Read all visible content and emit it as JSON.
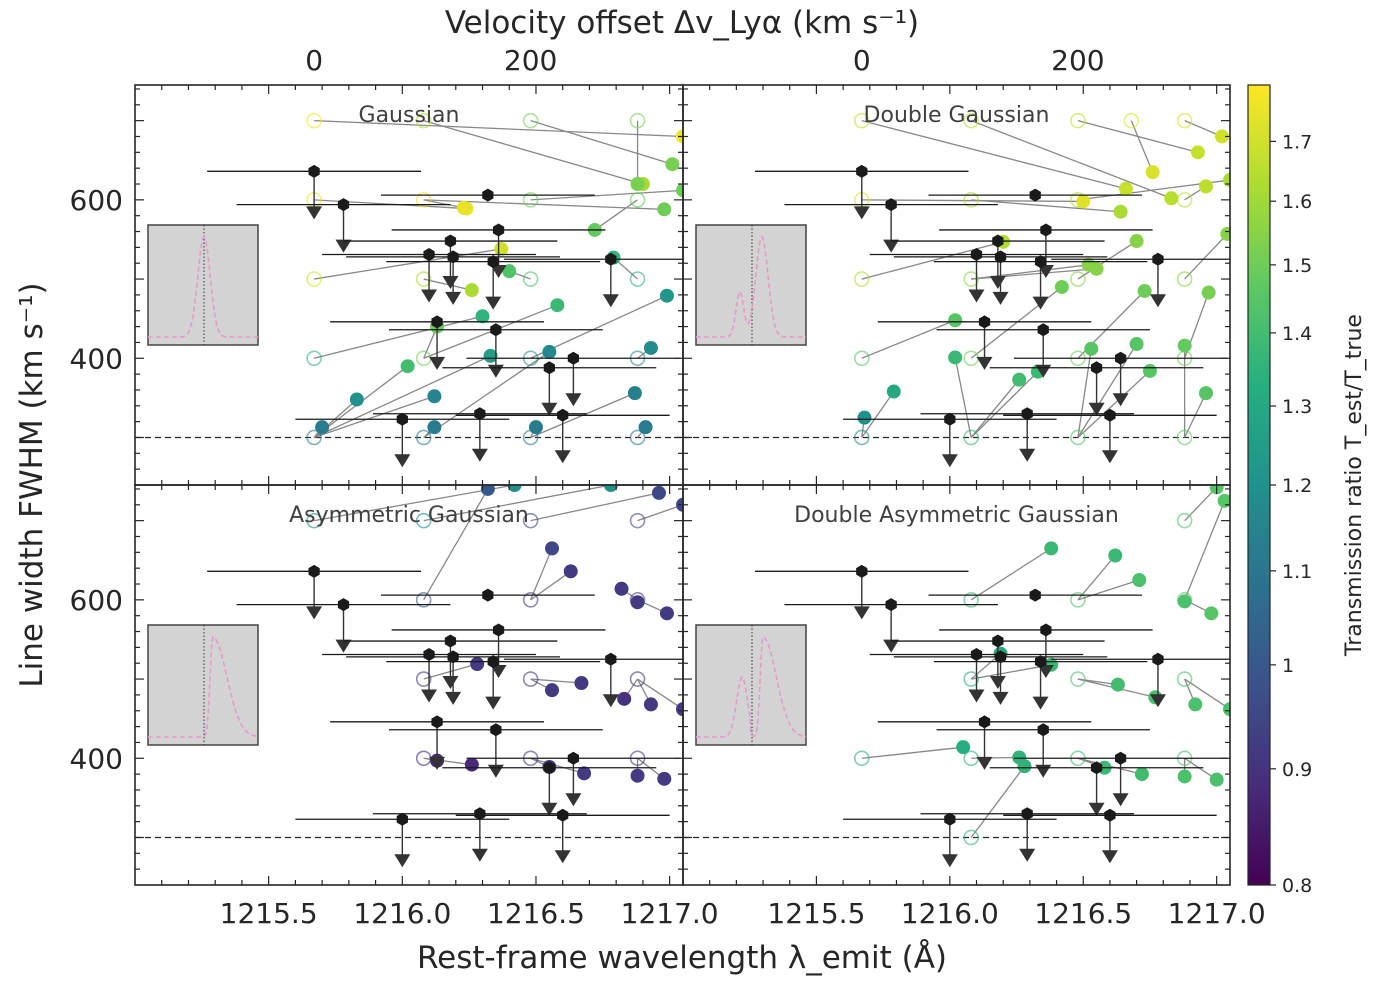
{
  "chart_data": {
    "type": "scatter",
    "figure": {
      "xlabel_bottom": "Rest-frame wavelength λ_emit (Å)",
      "xlabel_top": "Velocity offset Δv_Lyα (km s⁻¹)",
      "ylabel": "Line width FWHM (km s⁻¹)",
      "colorbar_label": "Transmission ratio T_est/T_true",
      "xlim": [
        1215.0,
        1217.05
      ],
      "ylim": [
        240,
        745
      ],
      "x_ticks": [
        "1215.5",
        "1216.0",
        "1216.5",
        "1217.0"
      ],
      "x_tick_values": [
        1215.5,
        1216.0,
        1216.5,
        1217.0
      ],
      "top_ticks": [
        "0",
        "200"
      ],
      "top_tick_values": [
        1215.67,
        1216.48
      ],
      "y_ticks": [
        "400",
        "600"
      ],
      "y_tick_values": [
        400,
        600
      ],
      "reference_fwhm": 300,
      "colorbar": {
        "scale": "log",
        "range": [
          0.8,
          1.8
        ],
        "ticks": [
          "0.8",
          "0.9",
          "1",
          "1.1",
          "1.2",
          "1.3",
          "1.4",
          "1.5",
          "1.6",
          "1.7"
        ],
        "tick_values": [
          0.8,
          0.9,
          1.0,
          1.1,
          1.2,
          1.3,
          1.4,
          1.5,
          1.6,
          1.7
        ],
        "colormap": [
          "#440154",
          "#472d7b",
          "#3b528b",
          "#2c728e",
          "#21918c",
          "#28ae80",
          "#5ec962",
          "#addc30",
          "#fde725"
        ]
      },
      "colors": {
        "measurement": "#1a1a1a",
        "arrow": "#333333",
        "connector": "#888888",
        "reference_line": "#262626",
        "inset_bg": "#d3d3d3",
        "inset_curve": "#e79ac4"
      }
    },
    "measurements": [
      {
        "x": 1215.67,
        "y": 636,
        "xerr": [
          0.4,
          0.4
        ],
        "upper": true
      },
      {
        "x": 1215.78,
        "y": 594,
        "xerr": [
          0.4,
          0.4
        ],
        "upper": true
      },
      {
        "x": 1216.32,
        "y": 606,
        "xerr": [
          0.4,
          0.4
        ],
        "upper": false
      },
      {
        "x": 1216.18,
        "y": 548,
        "xerr": [
          0.4,
          0.4
        ],
        "upper": true
      },
      {
        "x": 1216.36,
        "y": 562,
        "xerr": [
          0.4,
          0.4
        ],
        "upper": true
      },
      {
        "x": 1216.1,
        "y": 531,
        "xerr": [
          0.4,
          0.4
        ],
        "upper": true
      },
      {
        "x": 1216.19,
        "y": 528,
        "xerr": [
          0.4,
          0.4
        ],
        "upper": true
      },
      {
        "x": 1216.34,
        "y": 522,
        "xerr": [
          0.4,
          0.4
        ],
        "upper": true
      },
      {
        "x": 1216.78,
        "y": 525,
        "xerr": [
          0.4,
          0.4
        ],
        "upper": true
      },
      {
        "x": 1216.13,
        "y": 446,
        "xerr": [
          0.4,
          0.4
        ],
        "upper": true
      },
      {
        "x": 1216.35,
        "y": 436,
        "xerr": [
          0.4,
          0.4
        ],
        "upper": true
      },
      {
        "x": 1216.55,
        "y": 388,
        "xerr": [
          0.4,
          0.4
        ],
        "upper": true
      },
      {
        "x": 1216.64,
        "y": 400,
        "xerr": [
          0.4,
          0.4
        ],
        "upper": true
      },
      {
        "x": 1216.0,
        "y": 323,
        "xerr": [
          0.4,
          0.4
        ],
        "upper": true
      },
      {
        "x": 1216.29,
        "y": 330,
        "xerr": [
          0.4,
          0.4
        ],
        "upper": true
      },
      {
        "x": 1216.6,
        "y": 328,
        "xerr": [
          0.4,
          0.4
        ],
        "upper": true
      }
    ],
    "panels": [
      {
        "title": "Gaussian",
        "inset": "gaussian",
        "points": [
          {
            "x0": 1215.67,
            "y0": 700,
            "x": 1217.05,
            "y": 680,
            "r": 1.76
          },
          {
            "x0": 1216.08,
            "y0": 700,
            "x": 1216.9,
            "y": 620,
            "r": 1.62
          },
          {
            "x0": 1216.48,
            "y0": 700,
            "x": 1217.01,
            "y": 645,
            "r": 1.52
          },
          {
            "x0": 1216.88,
            "y0": 700,
            "x": 1216.88,
            "y": 620,
            "r": 1.52
          },
          {
            "x0": 1215.67,
            "y0": 600,
            "x": 1216.24,
            "y": 589,
            "r": 1.76
          },
          {
            "x0": 1216.08,
            "y0": 600,
            "x": 1216.98,
            "y": 588,
            "r": 1.5
          },
          {
            "x0": 1216.48,
            "y0": 600,
            "x": 1217.05,
            "y": 612,
            "r": 1.5
          },
          {
            "x0": 1216.88,
            "y0": 600,
            "x": 1216.72,
            "y": 562,
            "r": 1.48
          },
          {
            "x0": 1215.67,
            "y0": 500,
            "x": 1216.37,
            "y": 538,
            "r": 1.7
          },
          {
            "x0": 1216.08,
            "y0": 500,
            "x": 1216.26,
            "y": 486,
            "r": 1.62
          },
          {
            "x0": 1216.48,
            "y0": 500,
            "x": 1216.4,
            "y": 510,
            "r": 1.43
          },
          {
            "x0": 1216.88,
            "y0": 500,
            "x": 1216.79,
            "y": 527,
            "r": 1.35
          },
          {
            "x0": 1215.67,
            "y0": 400,
            "x": 1216.3,
            "y": 453,
            "r": 1.35
          },
          {
            "x0": 1216.08,
            "y0": 400,
            "x": 1216.58,
            "y": 467,
            "r": 1.38
          },
          {
            "x0": 1216.48,
            "y0": 400,
            "x": 1216.99,
            "y": 479,
            "r": 1.22
          },
          {
            "x0": 1216.88,
            "y0": 400,
            "x": 1216.93,
            "y": 413,
            "r": 1.18
          },
          {
            "x0": 1215.67,
            "y0": 300,
            "x": 1216.33,
            "y": 403,
            "r": 1.25
          },
          {
            "x0": 1216.08,
            "y0": 300,
            "x": 1216.55,
            "y": 408,
            "r": 1.17
          },
          {
            "x0": 1216.48,
            "y0": 300,
            "x": 1216.87,
            "y": 356,
            "r": 1.14
          },
          {
            "x0": 1216.88,
            "y0": 300,
            "x": 1216.91,
            "y": 313,
            "r": 1.12
          },
          {
            "x0": 1215.67,
            "y0": 300,
            "x": 1216.02,
            "y": 390,
            "r": 1.4
          },
          {
            "x0": 1215.67,
            "y0": 300,
            "x": 1216.12,
            "y": 352,
            "r": 1.15
          },
          {
            "x0": 1215.67,
            "y0": 300,
            "x": 1215.83,
            "y": 348,
            "r": 1.2
          },
          {
            "x0": 1215.67,
            "y0": 300,
            "x": 1215.7,
            "y": 313,
            "r": 1.12
          },
          {
            "x0": 1216.08,
            "y0": 300,
            "x": 1216.12,
            "y": 313,
            "r": 1.12
          },
          {
            "x0": 1216.48,
            "y0": 300,
            "x": 1216.5,
            "y": 313,
            "r": 1.12
          },
          {
            "x0": 1216.08,
            "y0": 400,
            "x": 1216.13,
            "y": 440,
            "r": 1.5
          },
          {
            "x0": 1216.08,
            "y0": 600,
            "x": 1216.23,
            "y": 590,
            "r": 1.75
          }
        ]
      },
      {
        "title": "Double Gaussian",
        "inset": "double",
        "points": [
          {
            "x0": 1215.67,
            "y0": 700,
            "x": 1216.66,
            "y": 614,
            "r": 1.68
          },
          {
            "x0": 1216.08,
            "y0": 700,
            "x": 1216.83,
            "y": 602,
            "r": 1.65
          },
          {
            "x0": 1216.48,
            "y0": 700,
            "x": 1216.93,
            "y": 660,
            "r": 1.68
          },
          {
            "x0": 1216.88,
            "y0": 700,
            "x": 1217.02,
            "y": 680,
            "r": 1.7
          },
          {
            "x0": 1216.68,
            "y0": 700,
            "x": 1216.76,
            "y": 635,
            "r": 1.72
          },
          {
            "x0": 1215.67,
            "y0": 600,
            "x": 1216.5,
            "y": 598,
            "r": 1.73
          },
          {
            "x0": 1216.08,
            "y0": 600,
            "x": 1216.64,
            "y": 585,
            "r": 1.62
          },
          {
            "x0": 1216.48,
            "y0": 600,
            "x": 1217.05,
            "y": 625,
            "r": 1.62
          },
          {
            "x0": 1216.88,
            "y0": 600,
            "x": 1216.96,
            "y": 617,
            "r": 1.66
          },
          {
            "x0": 1215.67,
            "y0": 500,
            "x": 1216.2,
            "y": 547,
            "r": 1.63
          },
          {
            "x0": 1216.08,
            "y0": 500,
            "x": 1216.52,
            "y": 518,
            "r": 1.55
          },
          {
            "x0": 1216.48,
            "y0": 500,
            "x": 1216.7,
            "y": 548,
            "r": 1.55
          },
          {
            "x0": 1216.88,
            "y0": 500,
            "x": 1217.04,
            "y": 557,
            "r": 1.55
          },
          {
            "x0": 1215.67,
            "y0": 400,
            "x": 1216.02,
            "y": 448,
            "r": 1.45
          },
          {
            "x0": 1216.08,
            "y0": 400,
            "x": 1216.42,
            "y": 490,
            "r": 1.5
          },
          {
            "x0": 1216.48,
            "y0": 400,
            "x": 1216.73,
            "y": 485,
            "r": 1.5
          },
          {
            "x0": 1216.88,
            "y0": 400,
            "x": 1216.97,
            "y": 483,
            "r": 1.52
          },
          {
            "x0": 1215.67,
            "y0": 300,
            "x": 1215.79,
            "y": 358,
            "r": 1.3
          },
          {
            "x0": 1216.08,
            "y0": 300,
            "x": 1216.33,
            "y": 383,
            "r": 1.38
          },
          {
            "x0": 1216.48,
            "y0": 300,
            "x": 1216.75,
            "y": 384,
            "r": 1.45
          },
          {
            "x0": 1216.88,
            "y0": 300,
            "x": 1216.96,
            "y": 356,
            "r": 1.45
          },
          {
            "x0": 1215.67,
            "y0": 300,
            "x": 1215.68,
            "y": 325,
            "r": 1.2
          },
          {
            "x0": 1216.08,
            "y0": 300,
            "x": 1216.26,
            "y": 373,
            "r": 1.4
          },
          {
            "x0": 1216.08,
            "y0": 300,
            "x": 1216.02,
            "y": 401,
            "r": 1.38
          },
          {
            "x0": 1216.48,
            "y0": 300,
            "x": 1216.53,
            "y": 412,
            "r": 1.45
          },
          {
            "x0": 1216.48,
            "y0": 300,
            "x": 1216.7,
            "y": 418,
            "r": 1.45
          },
          {
            "x0": 1216.88,
            "y0": 300,
            "x": 1216.88,
            "y": 416,
            "r": 1.48
          },
          {
            "x0": 1216.08,
            "y0": 500,
            "x": 1216.55,
            "y": 513,
            "r": 1.55
          }
        ]
      },
      {
        "title": "Asymmetric Gaussian",
        "inset": "asym",
        "points": [
          {
            "x0": 1215.67,
            "y0": 700,
            "x": 1216.42,
            "y": 745,
            "r": 1.2
          },
          {
            "x0": 1216.08,
            "y0": 700,
            "x": 1216.78,
            "y": 745,
            "r": 1.2
          },
          {
            "x0": 1216.48,
            "y0": 700,
            "x": 1216.96,
            "y": 735,
            "r": 0.95
          },
          {
            "x0": 1216.88,
            "y0": 700,
            "x": 1217.05,
            "y": 720,
            "r": 0.95
          },
          {
            "x0": 1216.48,
            "y0": 600,
            "x": 1216.56,
            "y": 665,
            "r": 0.95
          },
          {
            "x0": 1216.48,
            "y0": 600,
            "x": 1216.63,
            "y": 636,
            "r": 0.92
          },
          {
            "x0": 1216.88,
            "y0": 600,
            "x": 1216.82,
            "y": 614,
            "r": 0.92
          },
          {
            "x0": 1216.88,
            "y0": 600,
            "x": 1216.88,
            "y": 597,
            "r": 0.92
          },
          {
            "x0": 1216.88,
            "y0": 600,
            "x": 1216.99,
            "y": 583,
            "r": 0.92
          },
          {
            "x0": 1216.48,
            "y0": 500,
            "x": 1216.56,
            "y": 486,
            "r": 0.92
          },
          {
            "x0": 1216.48,
            "y0": 500,
            "x": 1216.67,
            "y": 495,
            "r": 0.92
          },
          {
            "x0": 1216.88,
            "y0": 500,
            "x": 1216.83,
            "y": 475,
            "r": 0.9
          },
          {
            "x0": 1216.88,
            "y0": 500,
            "x": 1216.93,
            "y": 468,
            "r": 0.92
          },
          {
            "x0": 1216.88,
            "y0": 500,
            "x": 1217.05,
            "y": 462,
            "r": 0.92
          },
          {
            "x0": 1216.08,
            "y0": 500,
            "x": 1216.28,
            "y": 519,
            "r": 0.92
          },
          {
            "x0": 1216.08,
            "y0": 400,
            "x": 1216.13,
            "y": 397,
            "r": 0.88
          },
          {
            "x0": 1216.08,
            "y0": 400,
            "x": 1216.26,
            "y": 392,
            "r": 0.88
          },
          {
            "x0": 1216.48,
            "y0": 400,
            "x": 1216.55,
            "y": 389,
            "r": 0.92
          },
          {
            "x0": 1216.48,
            "y0": 400,
            "x": 1216.68,
            "y": 381,
            "r": 0.92
          },
          {
            "x0": 1216.88,
            "y0": 400,
            "x": 1216.88,
            "y": 378,
            "r": 0.92
          },
          {
            "x0": 1216.88,
            "y0": 400,
            "x": 1216.98,
            "y": 374,
            "r": 0.92
          },
          {
            "x0": 1216.08,
            "y0": 600,
            "x": 1216.32,
            "y": 740,
            "r": 1.0
          }
        ]
      },
      {
        "title": "Double Asymmetric Gaussian",
        "inset": "double_asym",
        "points": [
          {
            "x0": 1216.08,
            "y0": 600,
            "x": 1216.38,
            "y": 665,
            "r": 1.38
          },
          {
            "x0": 1216.48,
            "y0": 600,
            "x": 1216.62,
            "y": 656,
            "r": 1.38
          },
          {
            "x0": 1216.48,
            "y0": 600,
            "x": 1216.71,
            "y": 625,
            "r": 1.42
          },
          {
            "x0": 1216.88,
            "y0": 600,
            "x": 1216.88,
            "y": 598,
            "r": 1.42
          },
          {
            "x0": 1216.88,
            "y0": 600,
            "x": 1217.03,
            "y": 725,
            "r": 1.45
          },
          {
            "x0": 1216.88,
            "y0": 700,
            "x": 1217.0,
            "y": 742,
            "r": 1.45
          },
          {
            "x0": 1216.88,
            "y0": 600,
            "x": 1216.98,
            "y": 583,
            "r": 1.45
          },
          {
            "x0": 1216.48,
            "y0": 500,
            "x": 1216.63,
            "y": 493,
            "r": 1.4
          },
          {
            "x0": 1216.48,
            "y0": 500,
            "x": 1216.77,
            "y": 477,
            "r": 1.42
          },
          {
            "x0": 1216.88,
            "y0": 500,
            "x": 1216.92,
            "y": 468,
            "r": 1.42
          },
          {
            "x0": 1216.88,
            "y0": 500,
            "x": 1217.05,
            "y": 462,
            "r": 1.42
          },
          {
            "x0": 1216.08,
            "y0": 500,
            "x": 1216.38,
            "y": 518,
            "r": 1.38
          },
          {
            "x0": 1216.08,
            "y0": 500,
            "x": 1216.19,
            "y": 532,
            "r": 1.3
          },
          {
            "x0": 1215.67,
            "y0": 400,
            "x": 1216.05,
            "y": 414,
            "r": 1.32
          },
          {
            "x0": 1216.08,
            "y0": 400,
            "x": 1216.26,
            "y": 401,
            "r": 1.35
          },
          {
            "x0": 1216.48,
            "y0": 400,
            "x": 1216.58,
            "y": 388,
            "r": 1.38
          },
          {
            "x0": 1216.48,
            "y0": 400,
            "x": 1216.72,
            "y": 380,
            "r": 1.4
          },
          {
            "x0": 1216.88,
            "y0": 400,
            "x": 1216.88,
            "y": 377,
            "r": 1.42
          },
          {
            "x0": 1216.88,
            "y0": 400,
            "x": 1217.0,
            "y": 373,
            "r": 1.42
          },
          {
            "x0": 1216.08,
            "y0": 300,
            "x": 1216.28,
            "y": 390,
            "r": 1.35
          }
        ]
      }
    ]
  }
}
